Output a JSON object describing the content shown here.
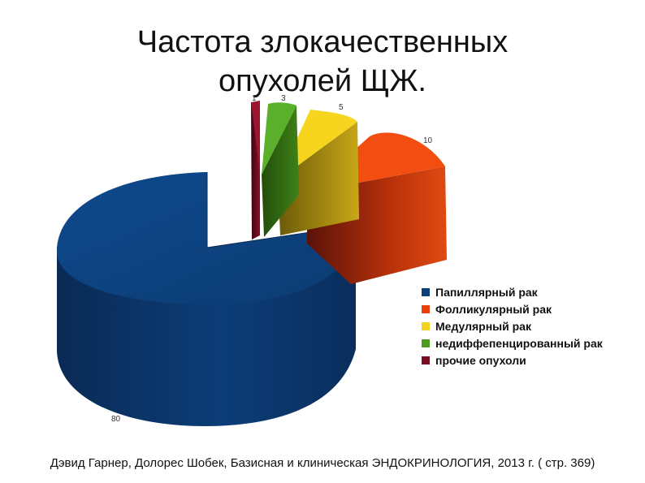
{
  "slide": {
    "title_line1": "Частота злокачественных",
    "title_line2": "опухолей ЩЖ.",
    "source": "Дэвид Гарнер, Долорес Шобек, Базисная и клиническая ЭНДОКРИНОЛОГИЯ, 2013 г. ( стр. 369)"
  },
  "chart_data": {
    "type": "pie",
    "style": "3d-exploded",
    "legend_position": "right",
    "series": [
      {
        "name": "Папиллярный рак",
        "value": 80,
        "label": "80",
        "color": "#0b3f7a"
      },
      {
        "name": "Фолликулярный рак",
        "value": 10,
        "label": "10",
        "color": "#e8420e"
      },
      {
        "name": "Медулярный рак",
        "value": 5,
        "label": "5",
        "color": "#f2d31b"
      },
      {
        "name": "недиффепенцированный рак",
        "value": 3,
        "label": "3",
        "color": "#4c9a1f"
      },
      {
        "name": "прочие опухоли",
        "value": 1,
        "label": "1",
        "color": "#7a0c22"
      }
    ]
  }
}
